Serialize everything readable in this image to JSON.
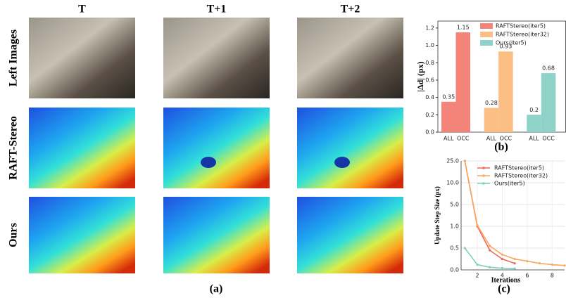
{
  "figure": {
    "columns": [
      "T",
      "T+1",
      "T+2"
    ],
    "rows": [
      "Left Images",
      "RAFT-Stereo",
      "Ours"
    ],
    "caption": "(a)"
  },
  "chart_data": [
    {
      "type": "bar",
      "ylabel": "|Δd| (px)",
      "caption": "(b)",
      "categories": [
        "ALL",
        "OCC"
      ],
      "series": [
        {
          "name": "RAFTStereo(iter5)",
          "color": "#f4837a",
          "values": [
            0.35,
            1.15
          ]
        },
        {
          "name": "RAFTStereo(iter32)",
          "color": "#fbbf85",
          "values": [
            0.28,
            0.93
          ]
        },
        {
          "name": "Ours(iter5)",
          "color": "#8fd3c8",
          "values": [
            0.2,
            0.68
          ]
        }
      ],
      "ylim": [
        0,
        1.28
      ],
      "yticks": [
        {
          "value": 0,
          "label": "0.0"
        },
        0.2,
        0.4,
        0.6,
        0.8,
        {
          "value": 1,
          "label": "1.0"
        },
        1.2
      ],
      "legend": "upper right"
    },
    {
      "type": "line",
      "xlabel": "Iterations",
      "ylabel": "Update Step Size (px)",
      "caption": "(c)",
      "series": [
        {
          "name": "RAFTStereo(iter5)",
          "color": "#ee6a5c",
          "x": [
            1,
            2,
            3,
            4,
            5
          ],
          "values": [
            25,
            1.0,
            0.45,
            0.25,
            0.15
          ]
        },
        {
          "name": "RAFTStereo(iter32)",
          "color": "#f6a95f",
          "x": [
            1,
            2,
            3,
            4,
            5,
            6,
            7,
            8,
            9
          ],
          "values": [
            25,
            1.2,
            0.55,
            0.35,
            0.25,
            0.2,
            0.15,
            0.12,
            0.1
          ]
        },
        {
          "name": "Ours(iter5)",
          "color": "#7fcfbf",
          "x": [
            1,
            2,
            3,
            4,
            5
          ],
          "values": [
            0.5,
            0.12,
            0.06,
            0.04,
            0.03
          ]
        }
      ],
      "xlim": [
        0.7,
        9
      ],
      "xticks": [
        2,
        4,
        6,
        8
      ],
      "ylim": [
        0,
        25
      ],
      "yscale": "piecewise",
      "yticks": [
        {
          "value": 0,
          "label": "0.0"
        },
        0.5,
        {
          "value": 1,
          "label": "1.0"
        },
        {
          "value": 5,
          "label": "5.0"
        },
        {
          "value": 10,
          "label": "10.0"
        },
        {
          "value": 25,
          "label": "25.0"
        }
      ],
      "grid": true,
      "legend": "upper right"
    }
  ]
}
